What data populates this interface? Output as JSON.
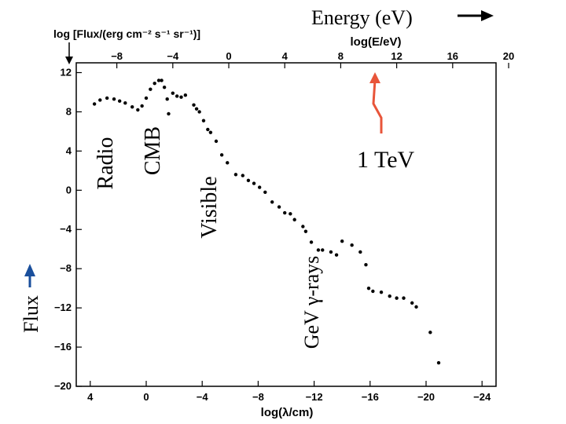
{
  "header": {
    "energy_label": "Energy (eV)",
    "energy_arrow_icon": "arrow-right-icon",
    "flux_formula": "log [Flux/(erg cm⁻² s⁻¹ sr⁻¹)]",
    "flux_label": "Flux",
    "flux_arrow_icon": "arrow-up-icon"
  },
  "annotations": {
    "radio": "Radio",
    "cmb": "CMB",
    "visible": "Visible",
    "gev": "GeV γ-rays",
    "tev": "1 TeV",
    "tev_marker_icon": "lightning-arrow-icon",
    "tev_marker_color": "#e8553a"
  },
  "chart_data": {
    "type": "scatter",
    "title": "",
    "xlabel": "log(λ/cm)",
    "ylabel": "log [Flux/(erg cm⁻² s⁻¹ sr⁻¹)]",
    "x2label": "log(E/eV)",
    "xlim": [
      5,
      -25
    ],
    "ylim": [
      -20,
      13
    ],
    "x_ticks": [
      4,
      0,
      -4,
      -8,
      -12,
      -16,
      -20,
      -24
    ],
    "x_tick_labels": [
      "4",
      "0",
      "−4",
      "−8",
      "−12",
      "−16",
      "−20",
      "−24"
    ],
    "x2_ticks": [
      -8,
      -4,
      0,
      4,
      8,
      12,
      16,
      20
    ],
    "x2_tick_labels": [
      "−8",
      "−4",
      "0",
      "4",
      "8",
      "12",
      "16",
      "20"
    ],
    "x2_at_x0": -5.9,
    "y_ticks": [
      12,
      8,
      4,
      0,
      -4,
      -8,
      -12,
      -16,
      -20
    ],
    "y_tick_labels": [
      "12",
      "8",
      "4",
      "0",
      "−4",
      "−8",
      "−12",
      "−16",
      "−20"
    ],
    "grid": false,
    "series": [
      {
        "points": [
          [
            3.7,
            8.8
          ],
          [
            3.3,
            9.2
          ],
          [
            2.8,
            9.4
          ],
          [
            2.3,
            9.3
          ],
          [
            1.9,
            9.1
          ],
          [
            1.5,
            8.9
          ],
          [
            1.0,
            8.5
          ],
          [
            0.6,
            8.2
          ],
          [
            0.3,
            8.6
          ],
          [
            0.0,
            9.4
          ],
          [
            -0.3,
            10.3
          ],
          [
            -0.6,
            10.9
          ],
          [
            -0.9,
            11.2
          ],
          [
            -1.1,
            11.2
          ],
          [
            -1.3,
            10.5
          ],
          [
            -1.5,
            9.3
          ],
          [
            -1.6,
            7.8
          ],
          [
            -1.9,
            9.9
          ],
          [
            -2.2,
            9.6
          ],
          [
            -2.5,
            9.5
          ],
          [
            -2.8,
            9.7
          ],
          [
            -3.4,
            8.7
          ],
          [
            -3.6,
            8.3
          ],
          [
            -3.8,
            8.0
          ],
          [
            -4.1,
            7.1
          ],
          [
            -4.4,
            6.2
          ],
          [
            -4.6,
            5.9
          ],
          [
            -5.0,
            5.0
          ],
          [
            -5.4,
            3.6
          ],
          [
            -5.8,
            2.8
          ],
          [
            -6.4,
            1.6
          ],
          [
            -6.9,
            1.5
          ],
          [
            -7.3,
            1.0
          ],
          [
            -7.7,
            0.7
          ],
          [
            -8.1,
            0.3
          ],
          [
            -8.5,
            -0.2
          ],
          [
            -9.0,
            -1.2
          ],
          [
            -9.5,
            -1.7
          ],
          [
            -9.9,
            -2.3
          ],
          [
            -10.3,
            -2.4
          ],
          [
            -10.6,
            -3.0
          ],
          [
            -11.2,
            -3.7
          ],
          [
            -11.4,
            -4.2
          ],
          [
            -11.8,
            -5.3
          ],
          [
            -12.3,
            -6.1
          ],
          [
            -12.6,
            -6.1
          ],
          [
            -13.2,
            -6.3
          ],
          [
            -13.6,
            -6.6
          ],
          [
            -14.0,
            -5.2
          ],
          [
            -14.7,
            -5.6
          ],
          [
            -15.3,
            -6.3
          ],
          [
            -15.7,
            -7.6
          ],
          [
            -15.9,
            -10.0
          ],
          [
            -16.2,
            -10.3
          ],
          [
            -16.8,
            -10.4
          ],
          [
            -17.4,
            -10.8
          ],
          [
            -17.9,
            -11.0
          ],
          [
            -18.4,
            -11.0
          ],
          [
            -19.0,
            -11.5
          ],
          [
            -19.3,
            -11.9
          ],
          [
            -20.3,
            -14.5
          ],
          [
            -20.9,
            -17.6
          ]
        ]
      }
    ]
  }
}
